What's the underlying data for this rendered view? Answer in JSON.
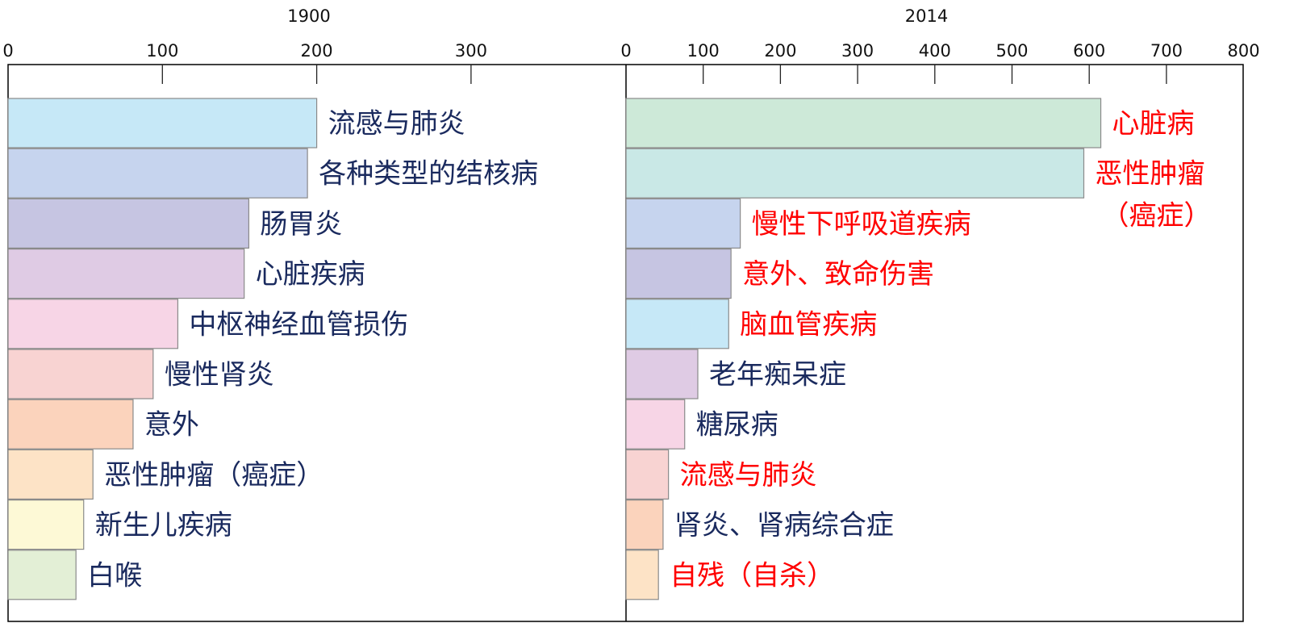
{
  "chart_data": [
    {
      "type": "bar",
      "orientation": "horizontal",
      "title": "1900",
      "xlim": [
        0,
        400
      ],
      "xticks": [
        0,
        100,
        200,
        300
      ],
      "categories": [
        "流感与肺炎",
        "各种类型的结核病",
        "肠胃炎",
        "心脏疾病",
        "中枢神经血管损伤",
        "慢性肾炎",
        "意外",
        "恶性肿瘤（癌症）",
        "新生儿疾病",
        "白喉"
      ],
      "values": [
        200,
        194,
        156,
        153,
        110,
        94,
        81,
        55,
        49,
        44
      ],
      "bar_colors": [
        "#c6e8f7",
        "#c6d4ee",
        "#c6c5e2",
        "#dfcbe4",
        "#f7d5e6",
        "#f8d3d2",
        "#fbd3bc",
        "#fde3c6",
        "#fdf9d6",
        "#e3efd6"
      ],
      "label_colors": [
        "#1a2a5e",
        "#1a2a5e",
        "#1a2a5e",
        "#1a2a5e",
        "#1a2a5e",
        "#1a2a5e",
        "#1a2a5e",
        "#1a2a5e",
        "#1a2a5e",
        "#1a2a5e"
      ]
    },
    {
      "type": "bar",
      "orientation": "horizontal",
      "title": "2014",
      "xlim": [
        0,
        800
      ],
      "xticks": [
        0,
        100,
        200,
        300,
        400,
        500,
        600,
        700,
        800
      ],
      "categories": [
        "心脏病",
        "恶性肿瘤\n（癌症）",
        "慢性下呼吸道疾病",
        "意外、致命伤害",
        "脑血管疾病",
        "老年痴呆症",
        "糖尿病",
        "流感与肺炎",
        "肾炎、肾病综合症",
        "自残（自杀）"
      ],
      "values": [
        615,
        593,
        148,
        136,
        133,
        93,
        76,
        55,
        48,
        42
      ],
      "bar_colors": [
        "#cde9d8",
        "#c9e8e6",
        "#c6d4ee",
        "#c6c5e2",
        "#c6e8f7",
        "#dfcbe4",
        "#f7d5e6",
        "#f8d3d2",
        "#fbd3bc",
        "#fde3c6"
      ],
      "label_colors": [
        "#ff0000",
        "#ff0000",
        "#ff0000",
        "#ff0000",
        "#ff0000",
        "#1a2a5e",
        "#1a2a5e",
        "#ff0000",
        "#1a2a5e",
        "#ff0000"
      ]
    }
  ]
}
